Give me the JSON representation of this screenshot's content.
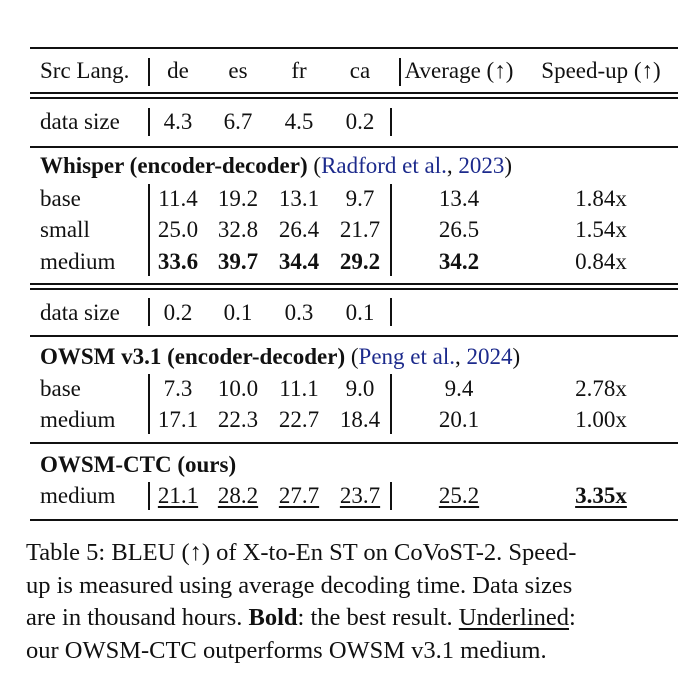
{
  "header": {
    "src_lang": "Src Lang.",
    "langs": [
      "de",
      "es",
      "fr",
      "ca"
    ],
    "average": "Average (↑)",
    "speedup": "Speed-up (↑)"
  },
  "whisper_data_size": {
    "label": "data size",
    "values": [
      "4.3",
      "6.7",
      "4.5",
      "0.2"
    ]
  },
  "whisper": {
    "title_bold": "Whisper (encoder-decoder)",
    "cite_open": " (",
    "cite_author": "Radford et al.",
    "cite_sep": ", ",
    "cite_year": "2023",
    "cite_close": ")",
    "rows": [
      {
        "model": "base",
        "values": [
          "11.4",
          "19.2",
          "13.1",
          "9.7"
        ],
        "average": "13.4",
        "speedup": "1.84x"
      },
      {
        "model": "small",
        "values": [
          "25.0",
          "32.8",
          "26.4",
          "21.7"
        ],
        "average": "26.5",
        "speedup": "1.54x"
      },
      {
        "model": "medium",
        "values": [
          "33.6",
          "39.7",
          "34.4",
          "29.2"
        ],
        "average": "34.2",
        "speedup": "0.84x"
      }
    ]
  },
  "owsm_data_size": {
    "label": "data size",
    "values": [
      "0.2",
      "0.1",
      "0.3",
      "0.1"
    ]
  },
  "owsm": {
    "title_bold": "OWSM v3.1 (encoder-decoder)",
    "cite_open": " (",
    "cite_author": "Peng et al.",
    "cite_sep": ", ",
    "cite_year": "2024",
    "cite_close": ")",
    "rows": [
      {
        "model": "base",
        "values": [
          "7.3",
          "10.0",
          "11.1",
          "9.0"
        ],
        "average": "9.4",
        "speedup": "2.78x"
      },
      {
        "model": "medium",
        "values": [
          "17.1",
          "22.3",
          "22.7",
          "18.4"
        ],
        "average": "20.1",
        "speedup": "1.00x"
      }
    ]
  },
  "ctc": {
    "title_bold": "OWSM-CTC (ours)",
    "rows": [
      {
        "model": "medium",
        "values": [
          "21.1",
          "28.2",
          "27.7",
          "23.7"
        ],
        "average": "25.2",
        "speedup": "3.35x"
      }
    ]
  },
  "caption": {
    "line1": "Table 5: BLEU (↑) of X-to-En ST on CoVoST-2. Speed-",
    "line2": "up is measured using average decoding time. Data sizes",
    "line3_a": "are in thousand hours. ",
    "line3_bold": "Bold",
    "line3_b": ": the best result. ",
    "line3_underline": "Underlined",
    "line3_c": ":",
    "line4": "our OWSM-CTC outperforms OWSM v3.1 medium."
  }
}
